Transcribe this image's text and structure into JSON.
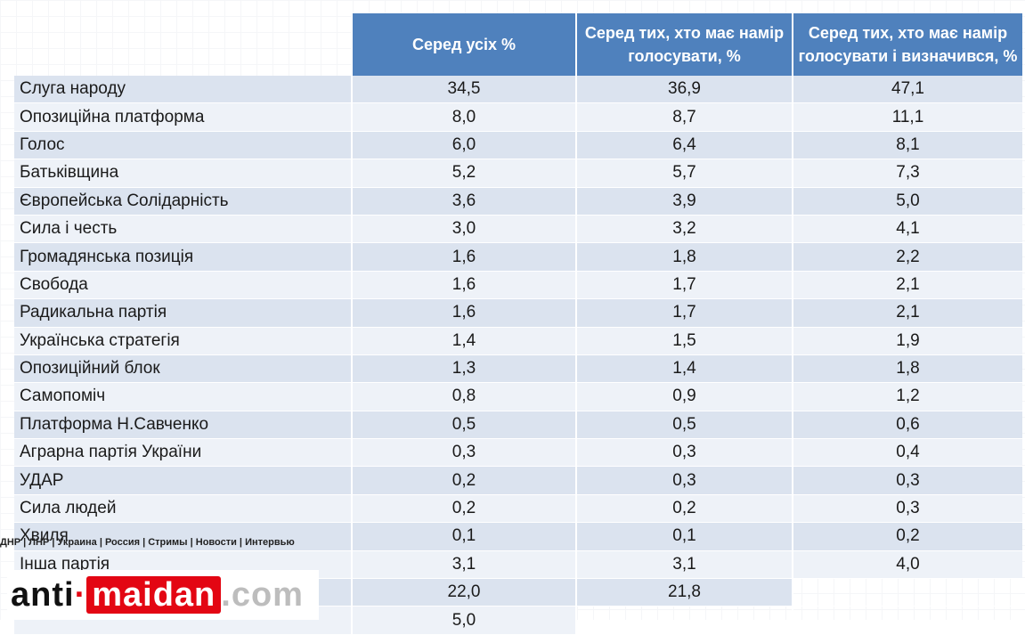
{
  "chart_data": {
    "type": "table",
    "columns": [
      "",
      "Серед усіх %",
      "Серед тих, хто має намір голосувати, %",
      "Серед тих, хто має намір голосувати і визначився, %"
    ],
    "rows": [
      {
        "party": "Слуга народу",
        "all": "34,5",
        "voters": "36,9",
        "decided": "47,1"
      },
      {
        "party": "Опозиційна платформа",
        "all": "8,0",
        "voters": "8,7",
        "decided": "11,1"
      },
      {
        "party": "Голос",
        "all": "6,0",
        "voters": "6,4",
        "decided": "8,1"
      },
      {
        "party": "Батьківщина",
        "all": "5,2",
        "voters": "5,7",
        "decided": "7,3"
      },
      {
        "party": "Європейська Солідарність",
        "all": "3,6",
        "voters": "3,9",
        "decided": "5,0"
      },
      {
        "party": "Сила і честь",
        "all": "3,0",
        "voters": "3,2",
        "decided": "4,1"
      },
      {
        "party": "Громадянська позиція",
        "all": "1,6",
        "voters": "1,8",
        "decided": "2,2"
      },
      {
        "party": "Свобода",
        "all": "1,6",
        "voters": "1,7",
        "decided": "2,1"
      },
      {
        "party": "Радикальна партія",
        "all": "1,6",
        "voters": "1,7",
        "decided": "2,1"
      },
      {
        "party": "Українська стратегія",
        "all": "1,4",
        "voters": "1,5",
        "decided": "1,9"
      },
      {
        "party": "Опозиційний блок",
        "all": "1,3",
        "voters": "1,4",
        "decided": "1,8"
      },
      {
        "party": "Самопоміч",
        "all": "0,8",
        "voters": "0,9",
        "decided": "1,2"
      },
      {
        "party": "Платформа Н.Савченко",
        "all": "0,5",
        "voters": "0,5",
        "decided": "0,6"
      },
      {
        "party": "Аграрна партія України",
        "all": "0,3",
        "voters": "0,3",
        "decided": "0,4"
      },
      {
        "party": "УДАР",
        "all": "0,2",
        "voters": "0,3",
        "decided": "0,3"
      },
      {
        "party": "Сила людей",
        "all": "0,2",
        "voters": "0,2",
        "decided": "0,3"
      },
      {
        "party": "Хвиля",
        "all": "0,1",
        "voters": "0,1",
        "decided": "0,2"
      },
      {
        "party": "Інша партія",
        "all": "3,1",
        "voters": "3,1",
        "decided": "4,0"
      },
      {
        "party": "",
        "all": "22,0",
        "voters": "21,8",
        "decided": ""
      },
      {
        "party": "",
        "all": "5,0",
        "voters": "",
        "decided": ""
      }
    ]
  },
  "watermark": {
    "nav_text": "ДНР | ЛНР | Украина | Россия | Стримы | Новости | Интервью",
    "logo_anti": "anti",
    "logo_dot": "·",
    "logo_maidan": "maidan",
    "logo_com": ".com",
    "brand_red": "#e30613"
  },
  "colors": {
    "header": "#4f81bd",
    "row_odd": "#dbe3ef",
    "row_even": "#eef2f8"
  }
}
